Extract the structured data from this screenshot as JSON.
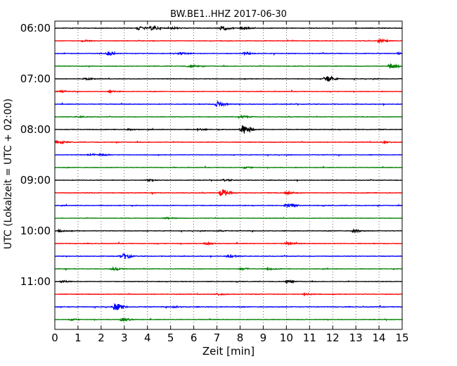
{
  "chart_data": {
    "type": "line",
    "title": "BW.BE1..HHZ 2017-06-30",
    "xlabel": "Zeit  [min]",
    "ylabel": "UTC (Lokalzeit = UTC + 02:00)",
    "xlim": [
      0,
      15
    ],
    "x_ticks": [
      "0",
      "1",
      "2",
      "3",
      "4",
      "5",
      "6",
      "7",
      "8",
      "9",
      "10",
      "11",
      "12",
      "13",
      "14",
      "15"
    ],
    "y_ticks": [
      "06:00",
      "07:00",
      "08:00",
      "09:00",
      "10:00",
      "11:00"
    ],
    "grid_x": true,
    "trace_interval_minutes": 15,
    "colors": [
      "#000000",
      "#ff0000",
      "#0000ff",
      "#008000"
    ],
    "traces": [
      {
        "start": "06:00",
        "color": "#000000",
        "amp": 0.35,
        "events": [
          {
            "t": 3.6,
            "a": 2.2
          },
          {
            "t": 4.2,
            "a": 2.5
          },
          {
            "t": 5.1,
            "a": 1.2
          },
          {
            "t": 7.2,
            "a": 2.8
          },
          {
            "t": 8.1,
            "a": 2.4
          }
        ]
      },
      {
        "start": "06:15",
        "color": "#ff0000",
        "amp": 0.3,
        "events": [
          {
            "t": 1.2,
            "a": 1.0
          },
          {
            "t": 14.0,
            "a": 1.8
          }
        ]
      },
      {
        "start": "06:30",
        "color": "#0000ff",
        "amp": 0.35,
        "events": [
          {
            "t": 2.3,
            "a": 2.2
          },
          {
            "t": 5.4,
            "a": 1.5
          },
          {
            "t": 8.2,
            "a": 1.2
          },
          {
            "t": 14.8,
            "a": 1.0
          }
        ]
      },
      {
        "start": "06:45",
        "color": "#008000",
        "amp": 0.3,
        "events": [
          {
            "t": 5.8,
            "a": 1.8
          },
          {
            "t": 14.5,
            "a": 3.8
          }
        ]
      },
      {
        "start": "07:00",
        "color": "#000000",
        "amp": 0.3,
        "events": [
          {
            "t": 1.3,
            "a": 1.0
          },
          {
            "t": 11.7,
            "a": 4.5
          }
        ]
      },
      {
        "start": "07:15",
        "color": "#ff0000",
        "amp": 0.3,
        "events": [
          {
            "t": 0.2,
            "a": 1.0
          },
          {
            "t": 2.4,
            "a": 0.8
          }
        ]
      },
      {
        "start": "07:30",
        "color": "#0000ff",
        "amp": 0.35,
        "events": [
          {
            "t": 7.0,
            "a": 3.5
          }
        ]
      },
      {
        "start": "07:45",
        "color": "#008000",
        "amp": 0.3,
        "events": [
          {
            "t": 1.0,
            "a": 0.8
          },
          {
            "t": 8.1,
            "a": 1.2
          }
        ]
      },
      {
        "start": "08:00",
        "color": "#000000",
        "amp": 0.35,
        "events": [
          {
            "t": 8.1,
            "a": 6.0
          },
          {
            "t": 6.2,
            "a": 1.0
          },
          {
            "t": 3.2,
            "a": 0.8
          }
        ]
      },
      {
        "start": "08:15",
        "color": "#ff0000",
        "amp": 0.35,
        "events": [
          {
            "t": 0.1,
            "a": 1.5
          },
          {
            "t": 14.2,
            "a": 1.0
          }
        ]
      },
      {
        "start": "08:30",
        "color": "#0000ff",
        "amp": 0.3,
        "events": [
          {
            "t": 1.5,
            "a": 1.2
          },
          {
            "t": 2.0,
            "a": 1.0
          }
        ]
      },
      {
        "start": "08:45",
        "color": "#008000",
        "amp": 0.3,
        "events": [
          {
            "t": 8.2,
            "a": 0.8
          }
        ]
      },
      {
        "start": "09:00",
        "color": "#000000",
        "amp": 0.3,
        "events": [
          {
            "t": 4.0,
            "a": 0.8
          },
          {
            "t": 7.3,
            "a": 1.0
          }
        ]
      },
      {
        "start": "09:15",
        "color": "#ff0000",
        "amp": 0.35,
        "events": [
          {
            "t": 7.2,
            "a": 4.5
          },
          {
            "t": 10.0,
            "a": 1.5
          }
        ]
      },
      {
        "start": "09:30",
        "color": "#0000ff",
        "amp": 0.35,
        "events": [
          {
            "t": 10.0,
            "a": 2.8
          }
        ]
      },
      {
        "start": "09:45",
        "color": "#008000",
        "amp": 0.3,
        "events": [
          {
            "t": 4.8,
            "a": 0.8
          }
        ]
      },
      {
        "start": "10:00",
        "color": "#000000",
        "amp": 0.3,
        "events": [
          {
            "t": 0.2,
            "a": 1.0
          },
          {
            "t": 7.0,
            "a": 0.8
          },
          {
            "t": 12.9,
            "a": 1.5
          }
        ]
      },
      {
        "start": "10:15",
        "color": "#ff0000",
        "amp": 0.35,
        "events": [
          {
            "t": 6.5,
            "a": 1.2
          },
          {
            "t": 10.0,
            "a": 1.2
          }
        ]
      },
      {
        "start": "10:30",
        "color": "#0000ff",
        "amp": 0.35,
        "events": [
          {
            "t": 2.9,
            "a": 4.0
          },
          {
            "t": 7.5,
            "a": 1.5
          }
        ]
      },
      {
        "start": "10:45",
        "color": "#008000",
        "amp": 0.3,
        "events": [
          {
            "t": 2.5,
            "a": 1.5
          },
          {
            "t": 8.0,
            "a": 1.2
          },
          {
            "t": 9.2,
            "a": 1.0
          }
        ]
      },
      {
        "start": "11:00",
        "color": "#000000",
        "amp": 0.3,
        "events": [
          {
            "t": 0.3,
            "a": 1.0
          },
          {
            "t": 10.0,
            "a": 1.5
          }
        ]
      },
      {
        "start": "11:15",
        "color": "#ff0000",
        "amp": 0.35,
        "events": [
          {
            "t": 7.0,
            "a": 1.2
          },
          {
            "t": 10.8,
            "a": 1.0
          }
        ]
      },
      {
        "start": "11:30",
        "color": "#0000ff",
        "amp": 0.4,
        "events": [
          {
            "t": 2.6,
            "a": 4.5
          },
          {
            "t": 5.1,
            "a": 1.0
          }
        ]
      },
      {
        "start": "11:45",
        "color": "#008000",
        "amp": 0.3,
        "events": [
          {
            "t": 2.9,
            "a": 2.0
          },
          {
            "t": 0.7,
            "a": 0.8
          }
        ]
      }
    ]
  }
}
